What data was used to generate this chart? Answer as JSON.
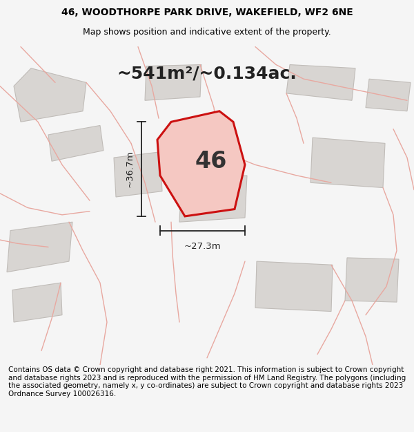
{
  "title_line1": "46, WOODTHORPE PARK DRIVE, WAKEFIELD, WF2 6NE",
  "title_line2": "Map shows position and indicative extent of the property.",
  "area_label": "~541m²/~0.134ac.",
  "plot_number": "46",
  "dim_horizontal": "~27.3m",
  "dim_vertical": "~36.7m",
  "footer_text": "Contains OS data © Crown copyright and database right 2021. This information is subject to Crown copyright and database rights 2023 and is reproduced with the permission of HM Land Registry. The polygons (including the associated geometry, namely x, y co-ordinates) are subject to Crown copyright and database rights 2023 Ordnance Survey 100026316.",
  "bg_color": "#f5f5f5",
  "map_bg": "#f8f6f4",
  "plot_fill": "#f5c8c2",
  "plot_edge": "#cc1111",
  "bldg_fill": "#d8d5d2",
  "bldg_edge": "#c0bcb8",
  "road_line_color": "#e8a8a0",
  "title_fontsize": 10,
  "subtitle_fontsize": 9,
  "footer_fontsize": 7.5,
  "area_fontsize": 18,
  "number_fontsize": 24
}
